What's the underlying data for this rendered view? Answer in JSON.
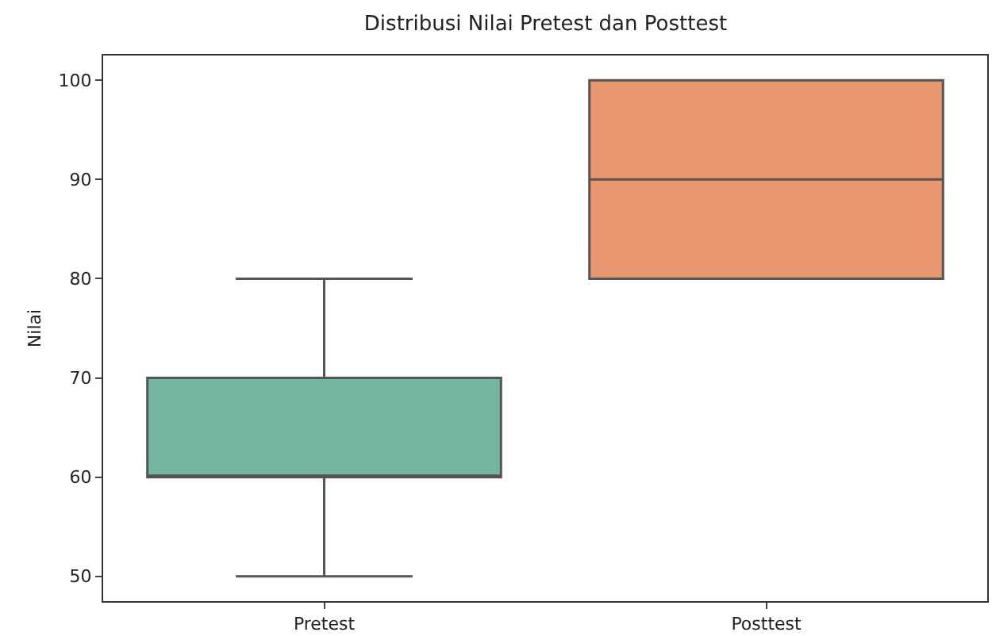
{
  "chart_data": {
    "type": "box",
    "title": "Distribusi Nilai Pretest dan Posttest",
    "ylabel": "Nilai",
    "categories": [
      "Pretest",
      "Posttest"
    ],
    "colors": [
      "#75b6a0",
      "#e8966f"
    ],
    "boxes": [
      {
        "low": 50,
        "q1": 60,
        "median": 60,
        "q3": 70,
        "high": 80
      },
      {
        "low": 80,
        "q1": 80,
        "median": 90,
        "q3": 100,
        "high": 100
      }
    ],
    "ylim": [
      47.5,
      102.5
    ],
    "yticks": [
      50,
      60,
      70,
      80,
      90,
      100
    ],
    "grid": false
  }
}
